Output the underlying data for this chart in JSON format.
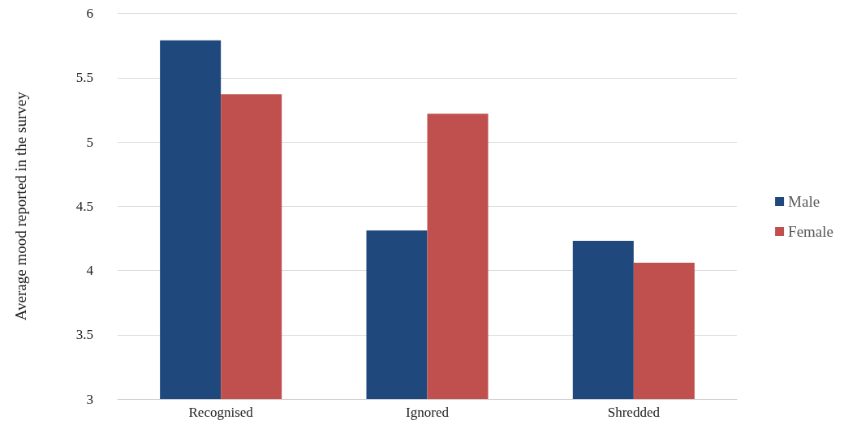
{
  "chart_data": {
    "type": "bar",
    "ylabel": "Average mood reported in the survey",
    "categories": [
      "Recognised",
      "Ignored",
      "Shredded"
    ],
    "series": [
      {
        "name": "Male",
        "color": "#1f497d",
        "values": [
          5.79,
          4.31,
          4.23
        ]
      },
      {
        "name": "Female",
        "color": "#c0504d",
        "values": [
          5.37,
          5.22,
          4.06
        ]
      }
    ],
    "ylim": [
      3,
      6
    ],
    "yticks": [
      3,
      3.5,
      4,
      4.5,
      5,
      5.5,
      6
    ],
    "grid": "y",
    "legend": "right"
  }
}
